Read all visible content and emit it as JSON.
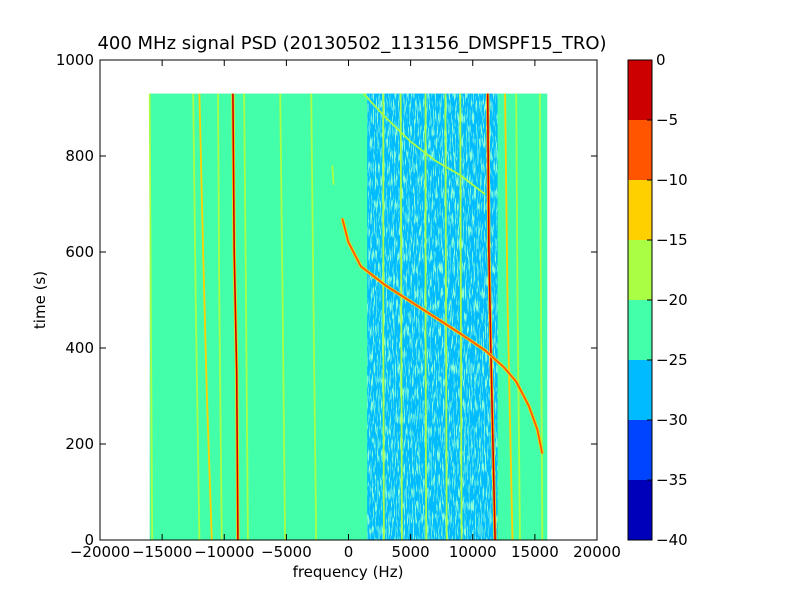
{
  "chart_data": {
    "type": "heatmap",
    "title": "400 MHz signal PSD (20130502_113156_DMSPF15_TRO)",
    "xlabel": "frequency (Hz)",
    "ylabel": "time (s)",
    "xlim": [
      -20000,
      20000
    ],
    "ylim": [
      0,
      1000
    ],
    "x_ticks": [
      -20000,
      -15000,
      -10000,
      -5000,
      0,
      5000,
      10000,
      15000,
      20000
    ],
    "x_tick_labels": [
      "−20000",
      "−15000",
      "−10000",
      "−5000",
      "0",
      "5000",
      "10000",
      "15000",
      "20000"
    ],
    "y_ticks": [
      0,
      200,
      400,
      600,
      800,
      1000
    ],
    "y_tick_labels": [
      "0",
      "200",
      "400",
      "600",
      "800",
      "1000"
    ],
    "data_extent": {
      "freq": [
        -16000,
        16000
      ],
      "time": [
        0,
        930
      ]
    },
    "colorbar": {
      "range": [
        -40,
        0
      ],
      "ticks": [
        0,
        -5,
        -10,
        -15,
        -20,
        -25,
        -30,
        -35,
        -40
      ],
      "tick_labels": [
        "0",
        "−5",
        "−10",
        "−15",
        "−20",
        "−25",
        "−30",
        "−35",
        "−40"
      ],
      "levels": [
        {
          "range": [
            -40,
            -35
          ],
          "color": "#0000bb"
        },
        {
          "range": [
            -35,
            -30
          ],
          "color": "#0044ff"
        },
        {
          "range": [
            -30,
            -25
          ],
          "color": "#00bbff"
        },
        {
          "range": [
            -25,
            -20
          ],
          "color": "#44ffaa"
        },
        {
          "range": [
            -20,
            -15
          ],
          "color": "#aaff44"
        },
        {
          "range": [
            -15,
            -10
          ],
          "color": "#ffd000"
        },
        {
          "range": [
            -10,
            -5
          ],
          "color": "#ff5500"
        },
        {
          "range": [
            -5,
            0
          ],
          "color": "#cc0000"
        }
      ]
    },
    "background_level_dB": -22.5,
    "noisy_band": {
      "freq": [
        1500,
        12000
      ],
      "level_dB": -27.5
    },
    "lines": [
      {
        "name": "strong-line-1",
        "level_dB": -2.5,
        "points": [
          [
            -9300,
            930
          ],
          [
            -9200,
            600
          ],
          [
            -9000,
            350
          ],
          [
            -8900,
            0
          ]
        ]
      },
      {
        "name": "strong-line-2",
        "level_dB": -2.5,
        "points": [
          [
            11200,
            930
          ],
          [
            11300,
            600
          ],
          [
            11450,
            400
          ],
          [
            11800,
            0
          ]
        ]
      },
      {
        "name": "line-3",
        "level_dB": -12.5,
        "points": [
          [
            -12000,
            930
          ],
          [
            -11700,
            600
          ],
          [
            -11400,
            300
          ],
          [
            -11000,
            0
          ]
        ]
      },
      {
        "name": "line-4",
        "level_dB": -17.5,
        "points": [
          [
            -12500,
            930
          ],
          [
            -12300,
            500
          ],
          [
            -12000,
            0
          ]
        ]
      },
      {
        "name": "line-5",
        "level_dB": -17.5,
        "points": [
          [
            -10500,
            930
          ],
          [
            -10400,
            500
          ],
          [
            -10200,
            0
          ]
        ]
      },
      {
        "name": "line-6",
        "level_dB": -17.5,
        "points": [
          [
            -8400,
            930
          ],
          [
            -8250,
            500
          ],
          [
            -8100,
            0
          ]
        ]
      },
      {
        "name": "line-7",
        "level_dB": -17.5,
        "points": [
          [
            -5500,
            930
          ],
          [
            -5300,
            500
          ],
          [
            -5100,
            0
          ]
        ]
      },
      {
        "name": "line-8",
        "level_dB": -17.5,
        "points": [
          [
            -3000,
            930
          ],
          [
            -2800,
            450
          ],
          [
            -2600,
            0
          ]
        ]
      },
      {
        "name": "line-9",
        "level_dB": -17.5,
        "points": [
          [
            -16000,
            930
          ],
          [
            -15900,
            450
          ],
          [
            -15800,
            0
          ]
        ]
      },
      {
        "name": "line-10",
        "level_dB": -17.5,
        "points": [
          [
            2800,
            930
          ],
          [
            2800,
            450
          ],
          [
            2850,
            0
          ]
        ]
      },
      {
        "name": "line-11",
        "level_dB": -17.5,
        "points": [
          [
            4200,
            930
          ],
          [
            4250,
            450
          ],
          [
            4300,
            0
          ]
        ]
      },
      {
        "name": "line-12",
        "level_dB": -17.5,
        "points": [
          [
            6200,
            930
          ],
          [
            6200,
            450
          ],
          [
            6250,
            0
          ]
        ]
      },
      {
        "name": "line-13",
        "level_dB": -17.5,
        "points": [
          [
            7800,
            930
          ],
          [
            7850,
            450
          ],
          [
            7900,
            0
          ]
        ]
      },
      {
        "name": "line-14",
        "level_dB": -17.5,
        "points": [
          [
            9000,
            930
          ],
          [
            9050,
            450
          ],
          [
            9100,
            0
          ]
        ]
      },
      {
        "name": "line-15",
        "level_dB": -12.5,
        "points": [
          [
            12600,
            930
          ],
          [
            12800,
            500
          ],
          [
            13200,
            0
          ]
        ]
      },
      {
        "name": "line-16",
        "level_dB": -17.5,
        "points": [
          [
            13500,
            930
          ],
          [
            13600,
            500
          ],
          [
            13800,
            0
          ]
        ]
      },
      {
        "name": "line-17",
        "level_dB": -17.5,
        "points": [
          [
            15400,
            930
          ],
          [
            15500,
            450
          ],
          [
            15600,
            0
          ]
        ]
      },
      {
        "name": "doppler-arc",
        "level_dB": -7.5,
        "points": [
          [
            -500,
            670
          ],
          [
            0,
            620
          ],
          [
            1000,
            570
          ],
          [
            3000,
            530
          ],
          [
            6000,
            480
          ],
          [
            9000,
            430
          ],
          [
            11000,
            395
          ],
          [
            12500,
            360
          ],
          [
            13500,
            330
          ],
          [
            14500,
            280
          ],
          [
            15200,
            230
          ],
          [
            15600,
            180
          ]
        ]
      },
      {
        "name": "upper-diagonal",
        "level_dB": -17.5,
        "points": [
          [
            1200,
            930
          ],
          [
            3000,
            880
          ],
          [
            5000,
            830
          ],
          [
            7000,
            790
          ],
          [
            9000,
            760
          ],
          [
            11000,
            720
          ]
        ]
      },
      {
        "name": "short-segment",
        "level_dB": -17.5,
        "points": [
          [
            -1300,
            780
          ],
          [
            -1200,
            740
          ]
        ]
      }
    ]
  }
}
